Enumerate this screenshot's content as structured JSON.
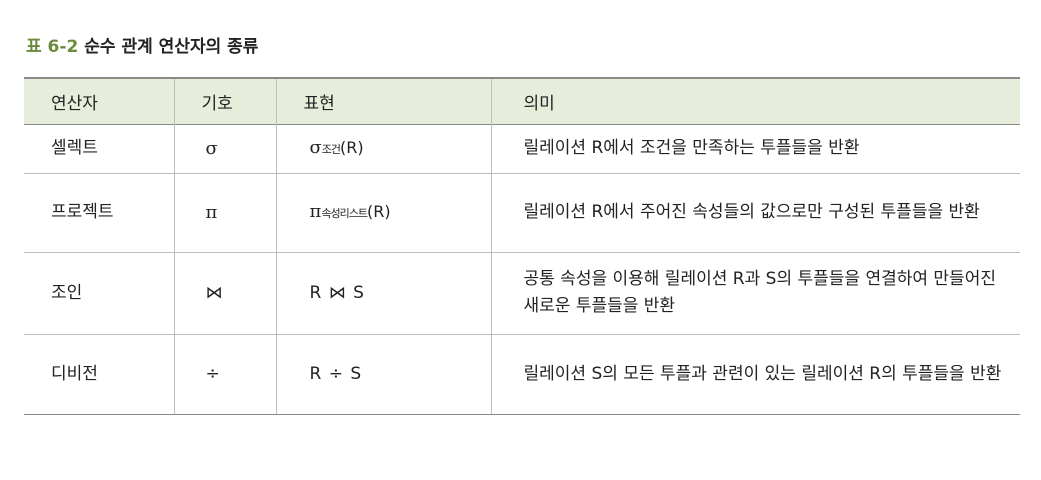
{
  "caption": {
    "number": "표 6-2",
    "title": "순수 관계 연산자의 종류"
  },
  "table": {
    "headers": [
      "연산자",
      "기호",
      "표현",
      "의미"
    ],
    "rows": [
      {
        "operator": "셀렉트",
        "symbol": "σ",
        "expression": {
          "symbol": "σ",
          "subscript": "조건",
          "argument": "(R)"
        },
        "meaning": "릴레이션 R에서 조건을 만족하는 투플들을 반환"
      },
      {
        "operator": "프로젝트",
        "symbol": "π",
        "expression": {
          "symbol": "π",
          "subscript": "속성리스트",
          "argument": "(R)"
        },
        "meaning": "릴레이션 R에서 주어진 속성들의 값으로만 구성된 투플들을 반환"
      },
      {
        "operator": "조인",
        "symbol": "⋈",
        "expression": {
          "text": "R ⋈ S"
        },
        "meaning": "공통 속성을 이용해 릴레이션 R과 S의 투플들을 연결하여 만들어진 새로운 투플들을 반환"
      },
      {
        "operator": "디비전",
        "symbol": "÷",
        "expression": {
          "text": "R ÷ S"
        },
        "meaning": "릴레이션 S의 모든 투플과 관련이 있는 릴레이션 R의 투플들을 반환"
      }
    ]
  }
}
